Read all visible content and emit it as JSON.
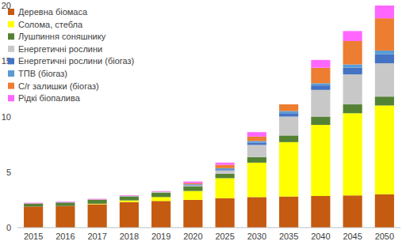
{
  "chart_data": {
    "type": "bar",
    "stacked": true,
    "legend": "top-left",
    "grid": false,
    "categories": [
      "2015",
      "2016",
      "2017",
      "2018",
      "2019",
      "2020",
      "2025",
      "2030",
      "2035",
      "2040",
      "2045",
      "2050"
    ],
    "ylim": [
      0,
      20
    ],
    "yticks": [
      0,
      5,
      10,
      15,
      20
    ],
    "series": [
      {
        "name": "Деревна біомаса",
        "color": "#c55a11",
        "values": [
          1.9,
          1.95,
          2.1,
          2.3,
          2.4,
          2.5,
          2.65,
          2.75,
          2.8,
          2.85,
          2.9,
          3.0
        ]
      },
      {
        "name": "Солома, стебла",
        "color": "#ffff00",
        "values": [
          0,
          0,
          0.05,
          0.15,
          0.35,
          0.8,
          1.8,
          3.1,
          4.9,
          6.4,
          7.4,
          8.0
        ]
      },
      {
        "name": "Лушпиння соняшнику",
        "color": "#548235",
        "values": [
          0.25,
          0.3,
          0.35,
          0.35,
          0.4,
          0.4,
          0.4,
          0.5,
          0.6,
          0.75,
          0.8,
          0.8
        ]
      },
      {
        "name": "Енергетичні рослини",
        "color": "#c8c8c8",
        "values": [
          0,
          0,
          0,
          0.02,
          0.05,
          0.1,
          0.3,
          1.1,
          1.7,
          2.4,
          2.7,
          3.0
        ]
      },
      {
        "name": "Енергетичні рослини (біогаз)",
        "color": "#4472c4",
        "values": [
          0,
          0,
          0,
          0,
          0,
          0.05,
          0.1,
          0.2,
          0.3,
          0.4,
          0.6,
          0.8
        ]
      },
      {
        "name": "ТПВ (біогаз)",
        "color": "#5b9bd5",
        "values": [
          0.02,
          0.02,
          0.02,
          0.02,
          0.02,
          0.05,
          0.1,
          0.15,
          0.2,
          0.2,
          0.3,
          0.35
        ]
      },
      {
        "name": "С/г залишки (біогаз)",
        "color": "#ed7d31",
        "values": [
          0.02,
          0.02,
          0.02,
          0.02,
          0.02,
          0.1,
          0.3,
          0.4,
          0.6,
          1.4,
          2.1,
          2.9
        ]
      },
      {
        "name": "Рідкі біопалива",
        "color": "#ff66ff",
        "values": [
          0.05,
          0.05,
          0.05,
          0.05,
          0.05,
          0.15,
          0.2,
          0.4,
          0,
          0.7,
          0.9,
          1.15
        ]
      }
    ]
  }
}
